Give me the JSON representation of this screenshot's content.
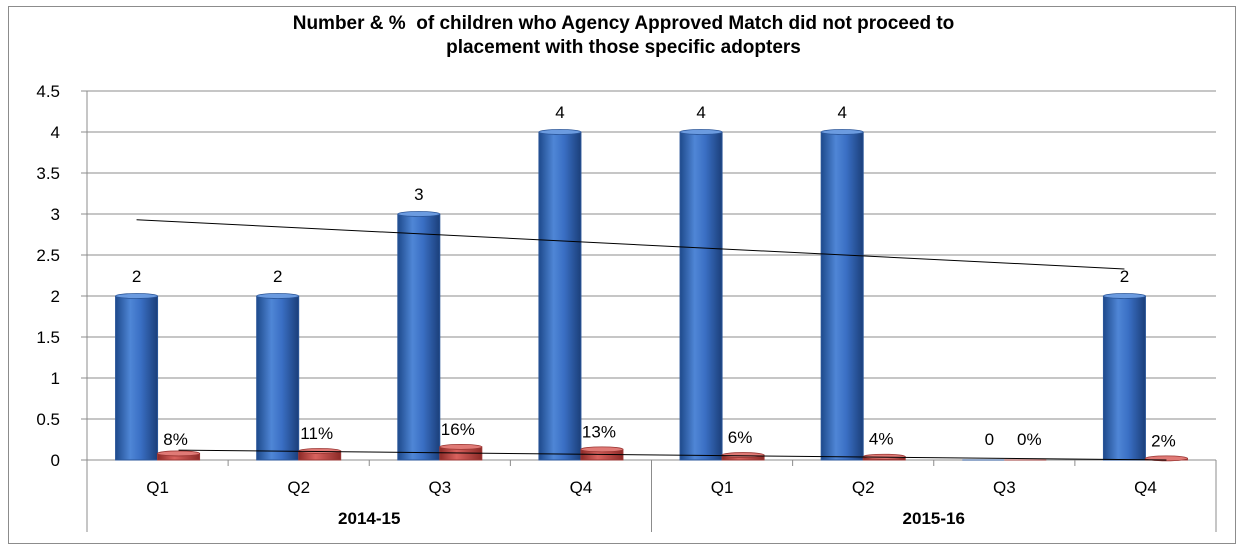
{
  "chart_data": {
    "type": "bar",
    "title_lines": [
      "Number & %  of children who Agency Approved Match did not proceed to",
      "placement with those specific adopters"
    ],
    "categories": [
      "Q1",
      "Q2",
      "Q3",
      "Q4",
      "Q1",
      "Q2",
      "Q3",
      "Q4"
    ],
    "groups": [
      {
        "label": "2014-15",
        "categories": [
          0,
          1,
          2,
          3
        ]
      },
      {
        "label": "2015-16",
        "categories": [
          4,
          5,
          6,
          7
        ]
      }
    ],
    "series": [
      {
        "values": [
          2,
          2,
          3,
          4,
          4,
          4,
          0,
          2
        ],
        "labels": [
          "2",
          "2",
          "3",
          "4",
          "4",
          "4",
          "0",
          "2"
        ],
        "color": "#3a6fc4"
      },
      {
        "values": [
          0.08,
          0.11,
          0.16,
          0.13,
          0.06,
          0.04,
          0.0,
          0.02
        ],
        "labels": [
          "8%",
          "11%",
          "16%",
          "13%",
          "6%",
          "4%",
          "0%",
          "2%"
        ],
        "color": "#c0504d"
      }
    ],
    "trendlines": [
      {
        "series": 0,
        "start": 2.93,
        "end": 2.33
      },
      {
        "series": 1,
        "start": 0.12,
        "end": 0.0
      }
    ],
    "yticks": [
      "0",
      "0.5",
      "1",
      "1.5",
      "2",
      "2.5",
      "3",
      "3.5",
      "4",
      "4.5"
    ],
    "ylim": [
      0,
      4.5
    ],
    "grid": true,
    "legend": "none"
  }
}
